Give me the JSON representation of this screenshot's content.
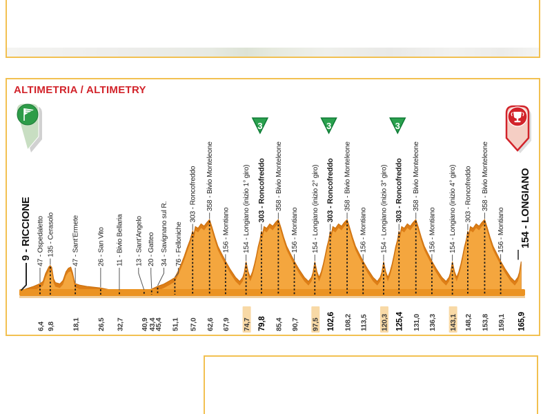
{
  "title": "ALTIMETRIA / ALTIMETRY",
  "icons": {
    "start": "flag-pin-icon",
    "finish": "trophy-pin-icon",
    "climb_marker": "category-3-triangle-icon"
  },
  "colors": {
    "accent_red": "#D2232A",
    "border_yellow": "#F2C050",
    "profile_fill": "#F4A63E",
    "profile_edge": "#DD7E17",
    "profile_edge_line": "#C9700F",
    "base_bar": "#EB9323",
    "base_strip": "#F0CF9F",
    "gpm_green": "#2AA14E",
    "gpm_green_dark": "#0E7A35",
    "km_highlight_bg": "#F8D9A6",
    "start_pin_body": "#C8DEC2",
    "start_pin_circle": "#2D9C48",
    "finish_pin_body": "#F5CEC4",
    "label_text": "#1F1F1F"
  },
  "chart_data": {
    "type": "area",
    "title": "ALTIMETRIA / ALTIMETRY",
    "x_unit": "km",
    "y_unit": "m",
    "x_total_km": 165.9,
    "y_max_m": 358,
    "start": {
      "label": "9 - RICCIONE",
      "name": "RICCIONE",
      "elevation_m": 9,
      "km": 0
    },
    "finish": {
      "label": "154 - LONGIANO",
      "name": "LONGIANO",
      "elevation_m": 154,
      "km": 165.9
    },
    "category3_climbs": [
      {
        "name": "Roncofreddo",
        "km": 79.8,
        "elevation_m": 303
      },
      {
        "name": "Roncofreddo",
        "km": 102.6,
        "elevation_m": 303
      },
      {
        "name": "Roncofreddo",
        "km": 125.4,
        "elevation_m": 303
      }
    ],
    "waypoints": [
      {
        "km": 6.4,
        "km_label": "6,4",
        "elevation_m": 47,
        "label": "47 - Ospedaletto"
      },
      {
        "km": 9.8,
        "km_label": "9,8",
        "elevation_m": 135,
        "label": "135 - Cerasolo"
      },
      {
        "km": 18.1,
        "km_label": "18,1",
        "elevation_m": 47,
        "label": "47 - Sant’Ermete"
      },
      {
        "km": 26.5,
        "km_label": "26,5",
        "elevation_m": 26,
        "label": "26 - San Vito"
      },
      {
        "km": 32.7,
        "km_label": "32,7",
        "elevation_m": 11,
        "label": "11 - Bivio Bellaria"
      },
      {
        "km": 40.9,
        "km_label": "40,9",
        "elevation_m": 13,
        "label": "13 - Sant’Angelo",
        "label_dx": -8
      },
      {
        "km": 43.4,
        "km_label": "43,4",
        "elevation_m": 20,
        "label": "20 - Gatteo",
        "label_dx": -1
      },
      {
        "km": 45.4,
        "km_label": "45,4",
        "elevation_m": 34,
        "label": "34 - Savignano sul R.",
        "label_dx": 9
      },
      {
        "km": 51.1,
        "km_label": "51,1",
        "elevation_m": 76,
        "label": "76 - Felloniche",
        "label_dx": 5
      },
      {
        "km": 57.0,
        "km_label": "57,0",
        "elevation_m": 303,
        "label": "303 - Roncofreddo"
      },
      {
        "km": 62.6,
        "km_label": "62,6",
        "elevation_m": 358,
        "label": "358 - Bivio Monteleone"
      },
      {
        "km": 67.9,
        "km_label": "67,9",
        "elevation_m": 156,
        "label": "156 - Montiano"
      },
      {
        "km": 74.7,
        "km_label": "74,7",
        "elevation_m": 154,
        "label": "154 - Longiano (inizio 1° giro)",
        "km_highlight": true
      },
      {
        "km": 79.8,
        "km_label": "79,8",
        "elevation_m": 303,
        "label": "303 - Roncofreddo",
        "bold": true,
        "gpm_cat3": true,
        "km_bold": true
      },
      {
        "km": 85.4,
        "km_label": "85,4",
        "elevation_m": 358,
        "label": "358 - Bivio Monteleone"
      },
      {
        "km": 90.7,
        "km_label": "90,7",
        "elevation_m": 156,
        "label": "156 - Montiano"
      },
      {
        "km": 97.5,
        "km_label": "97,5",
        "elevation_m": 154,
        "label": "154 - Longiano (inizio 2° giro)",
        "km_highlight": true
      },
      {
        "km": 102.6,
        "km_label": "102,6",
        "elevation_m": 303,
        "label": "303 - Roncofreddo",
        "bold": true,
        "gpm_cat3": true,
        "km_bold": true
      },
      {
        "km": 108.2,
        "km_label": "108,2",
        "elevation_m": 358,
        "label": "358 - Bivio Monteleone"
      },
      {
        "km": 113.5,
        "km_label": "113,5",
        "elevation_m": 156,
        "label": "156 - Montiano"
      },
      {
        "km": 120.3,
        "km_label": "120,3",
        "elevation_m": 154,
        "label": "154 - Longiano (inizio 3° giro)",
        "km_highlight": true
      },
      {
        "km": 125.4,
        "km_label": "125,4",
        "elevation_m": 303,
        "label": "303 - Roncofreddo",
        "bold": true,
        "gpm_cat3": true,
        "km_bold": true
      },
      {
        "km": 131.0,
        "km_label": "131,0",
        "elevation_m": 358,
        "label": "358 - Bivio Monteleone"
      },
      {
        "km": 136.3,
        "km_label": "136,3",
        "elevation_m": 156,
        "label": "156 - Montiano"
      },
      {
        "km": 143.1,
        "km_label": "143,1",
        "elevation_m": 154,
        "label": "154 - Longiano (inizio 4° giro)",
        "km_highlight": true
      },
      {
        "km": 148.2,
        "km_label": "148,2",
        "elevation_m": 303,
        "label": "303 - Roncofreddo"
      },
      {
        "km": 153.8,
        "km_label": "153,8",
        "elevation_m": 358,
        "label": "358 - Bivio Monteleone"
      },
      {
        "km": 159.1,
        "km_label": "159,1",
        "elevation_m": 156,
        "label": "156 - Montiano"
      },
      {
        "km": 165.9,
        "km_label": "165,9",
        "elevation_m": 154,
        "label": "154 - LONGIANO",
        "km_bold": true,
        "finish": true
      }
    ],
    "approach_points": [
      [
        0,
        9
      ],
      [
        1.5,
        20
      ],
      [
        4,
        32
      ],
      [
        6.4,
        47
      ],
      [
        7.4,
        58
      ],
      [
        8.2,
        95
      ],
      [
        9.3,
        128
      ],
      [
        9.8,
        135
      ],
      [
        10.3,
        126
      ],
      [
        10.9,
        70
      ],
      [
        11.5,
        52
      ],
      [
        13,
        46
      ],
      [
        14,
        62
      ],
      [
        15,
        105
      ],
      [
        15.8,
        122
      ],
      [
        16.6,
        127
      ],
      [
        17.2,
        100
      ],
      [
        17.7,
        65
      ],
      [
        18.1,
        47
      ],
      [
        19.5,
        40
      ],
      [
        22,
        33
      ],
      [
        26.5,
        26
      ],
      [
        29.5,
        17
      ],
      [
        32.7,
        11
      ],
      [
        36,
        12
      ],
      [
        39,
        12
      ],
      [
        40.9,
        13
      ],
      [
        43.4,
        20
      ],
      [
        45.4,
        34
      ],
      [
        47.3,
        44
      ],
      [
        49.3,
        60
      ],
      [
        51.1,
        76
      ],
      [
        52.2,
        108
      ],
      [
        53.2,
        142
      ],
      [
        54.2,
        180
      ],
      [
        55.2,
        222
      ],
      [
        56.1,
        258
      ],
      [
        57,
        303
      ],
      [
        57.4,
        286
      ],
      [
        57.9,
        324
      ],
      [
        58.8,
        316
      ],
      [
        59.8,
        337
      ],
      [
        60.8,
        326
      ],
      [
        61.7,
        344
      ],
      [
        62.6,
        358
      ],
      [
        63.4,
        322
      ],
      [
        64.4,
        272
      ],
      [
        65.4,
        228
      ],
      [
        66.5,
        196
      ],
      [
        67.9,
        156
      ],
      [
        69.4,
        118
      ],
      [
        71.2,
        78
      ],
      [
        72.6,
        58
      ],
      [
        73.6,
        78
      ],
      [
        74.1,
        102
      ],
      [
        74.7,
        154
      ]
    ],
    "lap_template_points": [
      [
        0.7,
        106
      ],
      [
        1.4,
        78
      ],
      [
        2.1,
        104
      ],
      [
        2.8,
        142
      ],
      [
        3.4,
        182
      ],
      [
        4.0,
        226
      ],
      [
        4.6,
        260
      ],
      [
        5.1,
        303
      ],
      [
        5.45,
        286
      ],
      [
        5.95,
        324
      ],
      [
        6.85,
        316
      ],
      [
        7.85,
        337
      ],
      [
        8.85,
        326
      ],
      [
        9.75,
        344
      ],
      [
        10.7,
        358
      ],
      [
        11.5,
        322
      ],
      [
        12.5,
        272
      ],
      [
        13.5,
        228
      ],
      [
        14.6,
        196
      ],
      [
        16.0,
        156
      ],
      [
        17.5,
        118
      ],
      [
        19.3,
        78
      ],
      [
        20.7,
        58
      ],
      [
        21.7,
        78
      ],
      [
        22.2,
        102
      ],
      [
        22.8,
        154
      ]
    ],
    "lap_starts_km": [
      74.7,
      97.5,
      120.3,
      143.1
    ]
  }
}
